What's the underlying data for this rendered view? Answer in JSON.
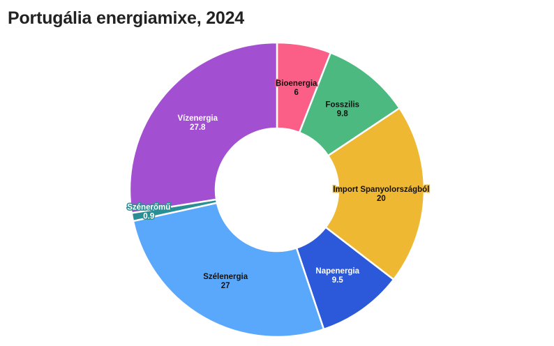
{
  "title": "Portugália energiamixe, 2024",
  "chart_data": {
    "type": "pie",
    "donut": true,
    "unit": "",
    "slices": [
      {
        "label": "Bioenergia",
        "value": 6,
        "value_label": "6",
        "color": "#fb5f87",
        "text_color": "#111111",
        "halo": "#fb5f87"
      },
      {
        "label": "Fosszilis",
        "value": 9.8,
        "value_label": "9.8",
        "color": "#4cb981",
        "text_color": "#111111",
        "halo": "#4cb981"
      },
      {
        "label": "Import Spanyolországból",
        "value": 20,
        "value_label": "20",
        "color": "#efb832",
        "text_color": "#111111",
        "halo": "#efb832"
      },
      {
        "label": "Napenergia",
        "value": 9.5,
        "value_label": "9.5",
        "color": "#2c59d9",
        "text_color": "#ffffff",
        "halo": "#2c59d9"
      },
      {
        "label": "Szélenergia",
        "value": 27,
        "value_label": "27",
        "color": "#5aa8fb",
        "text_color": "#111111",
        "halo": "#5aa8fb"
      },
      {
        "label": "Szénerőmű",
        "value": 0.9,
        "value_label": "0.9",
        "color": "#2a8f95",
        "text_color": "#ffffff",
        "halo": "#2a8f95"
      },
      {
        "label": "Vízenergia",
        "value": 27.8,
        "value_label": "27.8",
        "color": "#a24fd1",
        "text_color": "#ffffff",
        "halo": "#a24fd1"
      }
    ]
  }
}
